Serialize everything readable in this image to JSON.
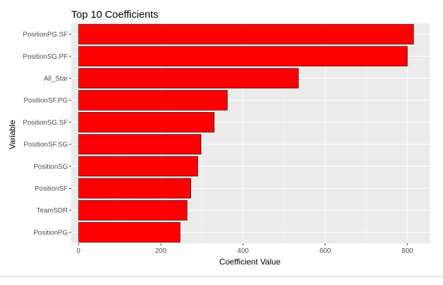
{
  "chart_data": {
    "type": "bar",
    "orientation": "horizontal",
    "title": "Top 10 Coefficients",
    "xlabel": "Coefficient Value",
    "ylabel": "Variable",
    "categories": [
      "PositionPG.SF",
      "PositionSG.PF",
      "All_Star",
      "PositionSF.PG",
      "PositionSG.SF",
      "PositionSF.SG",
      "PositionSG",
      "PositionSF",
      "TeamSDR",
      "PositionPG"
    ],
    "values": [
      815,
      800,
      535,
      362,
      330,
      298,
      290,
      273,
      264,
      247
    ],
    "xlim": [
      -18,
      855
    ],
    "xticks": [
      0,
      200,
      400,
      600,
      800
    ],
    "xtick_labels": [
      "0",
      "200",
      "400",
      "600",
      "800"
    ],
    "grid": true,
    "legend": "none",
    "colors": {
      "bar_fill": "#FF0000",
      "bar_stroke": "#000000",
      "panel_bg": "#EBEBEB",
      "grid_major": "#FFFFFF",
      "axis_text": "#4D4D4D",
      "title_text": "#000000"
    }
  }
}
